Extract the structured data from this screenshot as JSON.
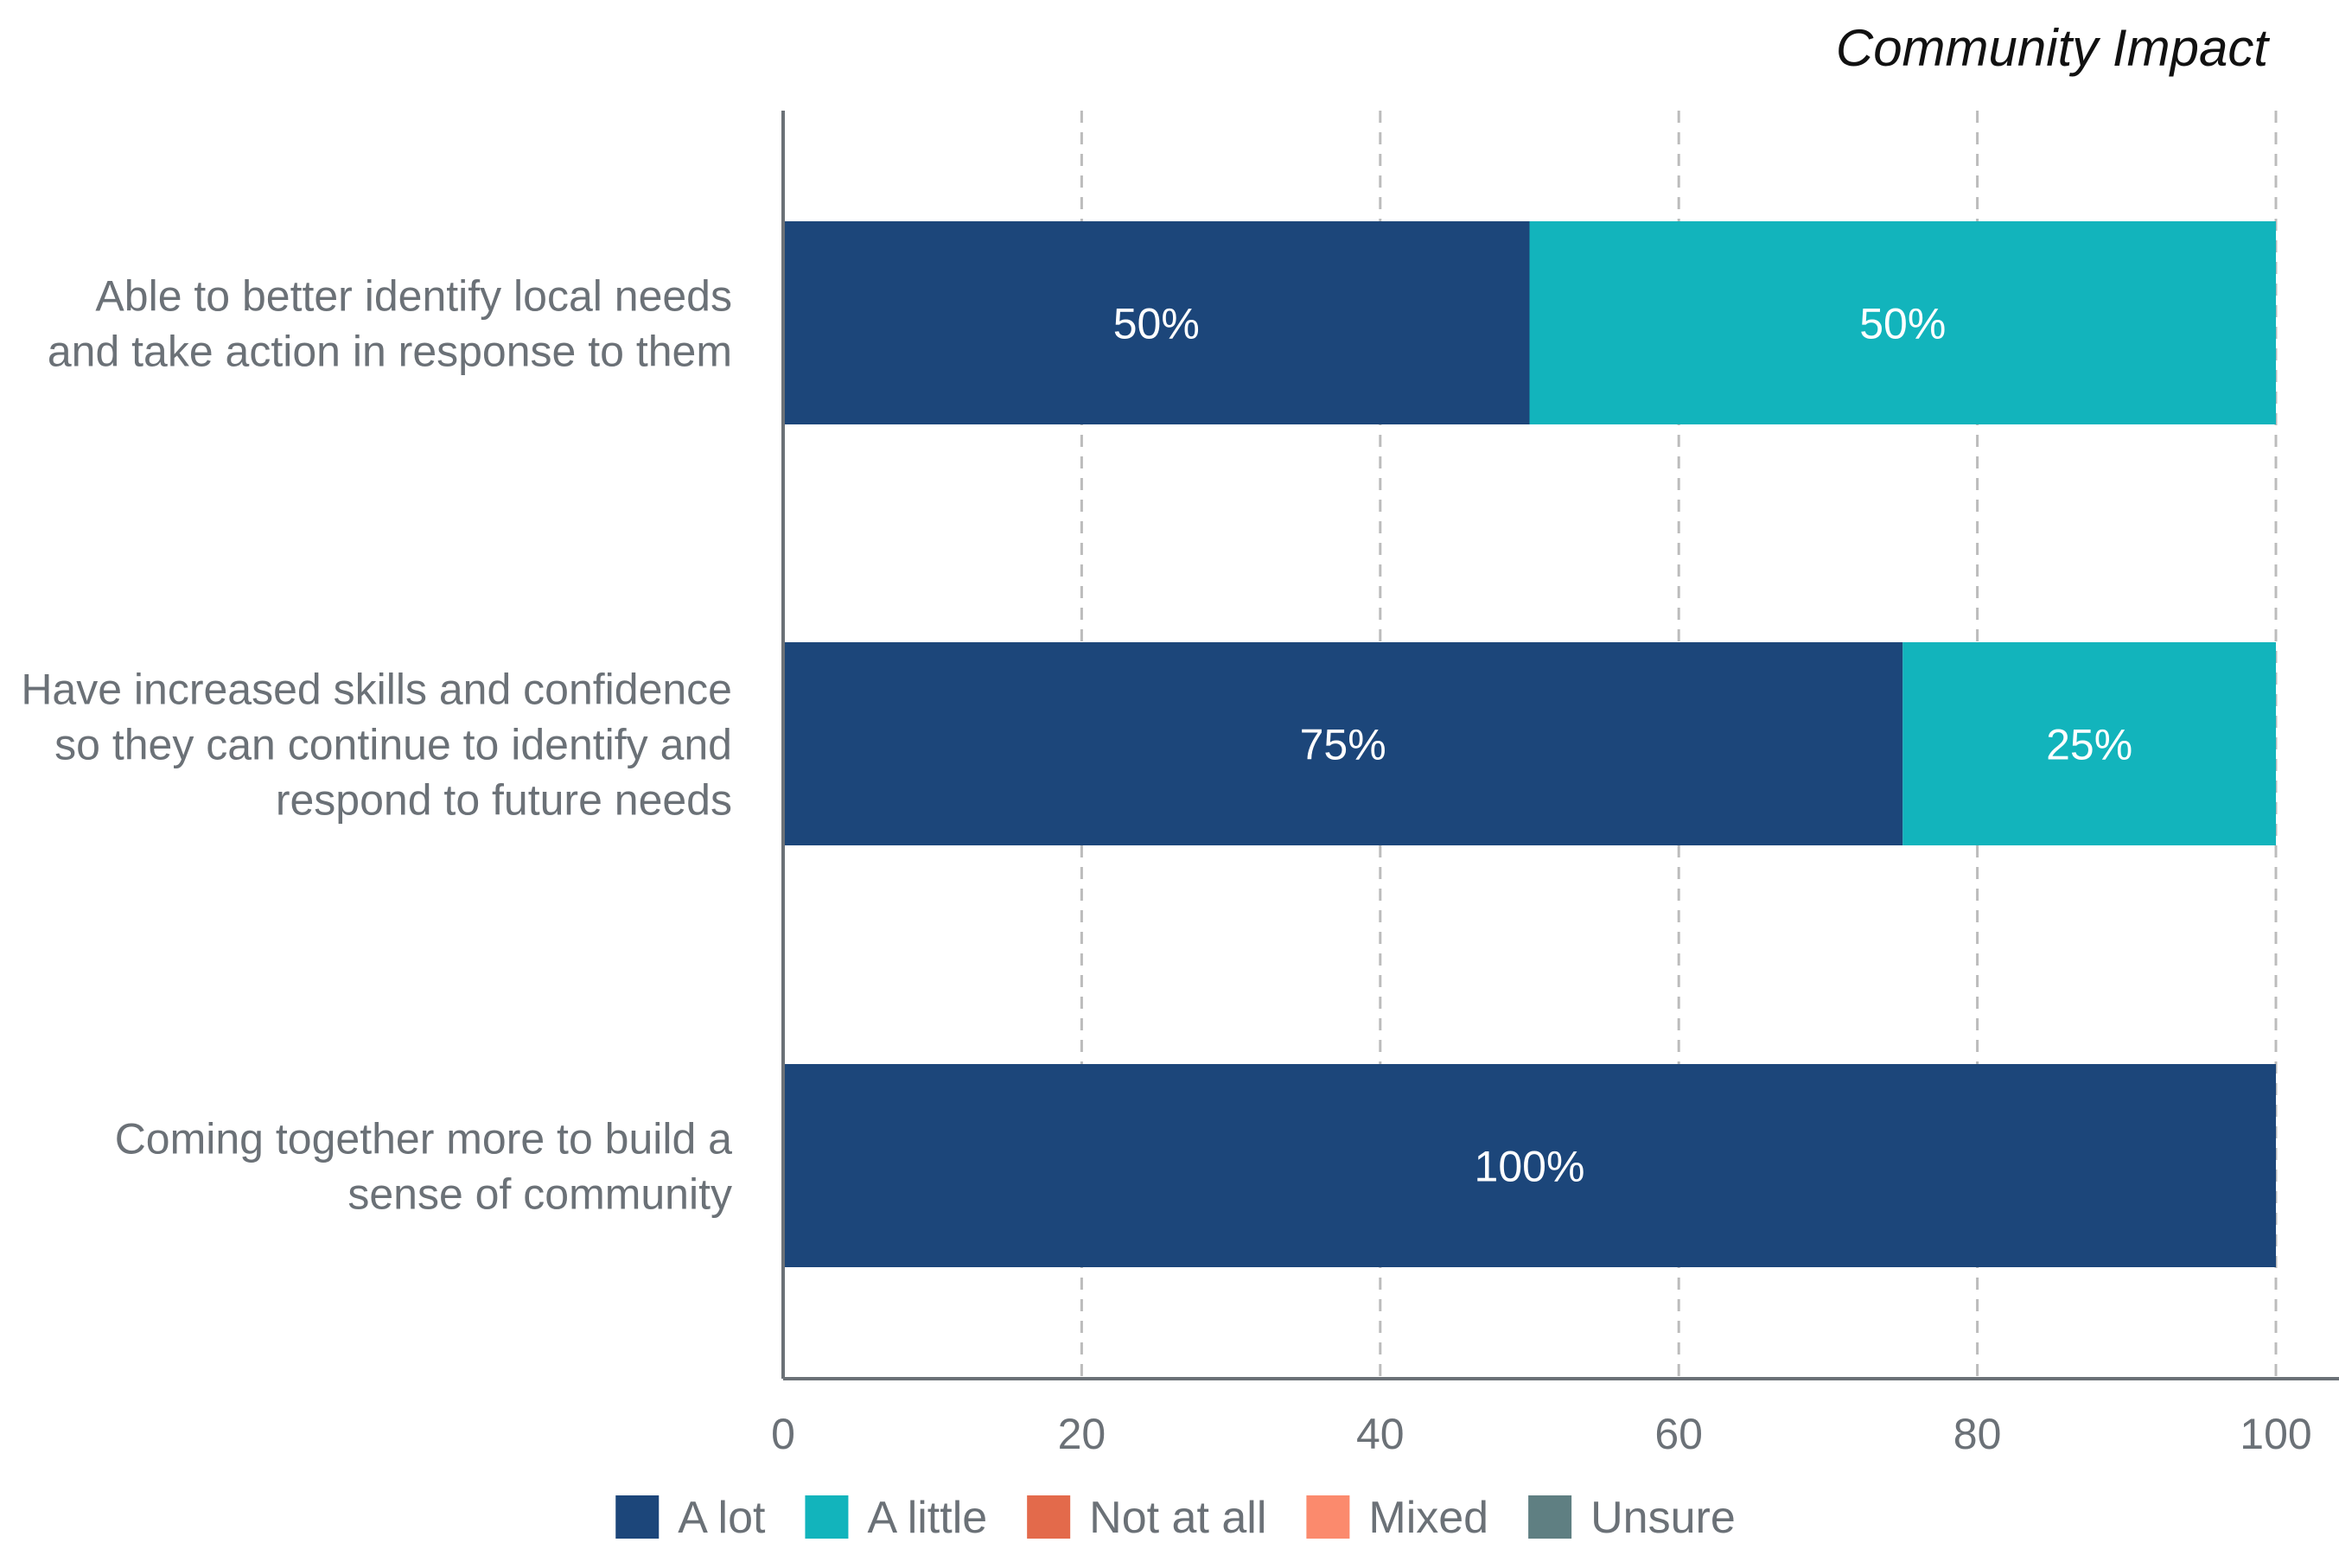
{
  "chart_data": {
    "type": "bar",
    "orientation": "horizontal",
    "stacked": true,
    "title": "Community Impact",
    "categories": [
      [
        "Able to better identify local needs",
        "and take action in response to them"
      ],
      [
        "Have increased skills and confidence",
        "so they can continue to identify and",
        "respond to future needs"
      ],
      [
        "Coming together more to build a",
        "sense of community"
      ]
    ],
    "series": [
      {
        "name": "A lot",
        "color": "#1c467a",
        "values": [
          50,
          75,
          100
        ]
      },
      {
        "name": "A little",
        "color": "#12b4bc",
        "values": [
          50,
          25,
          0
        ]
      },
      {
        "name": "Not at all",
        "color": "#e36a4b",
        "values": [
          0,
          0,
          0
        ]
      },
      {
        "name": "Mixed",
        "color": "#fb8a6d",
        "values": [
          0,
          0,
          0
        ]
      },
      {
        "name": "Unsure",
        "color": "#5f7f82",
        "values": [
          0,
          0,
          0
        ]
      }
    ],
    "data_label_suffix": "%",
    "xlim": [
      0,
      100
    ],
    "xticks": [
      0,
      20,
      40,
      60,
      80,
      100
    ],
    "grid": "vertical-dashed",
    "legend_position": "bottom"
  },
  "colors": {
    "category_text": "#6b7177",
    "tick_text": "#6b7177",
    "title_text": "#111111",
    "grid": "#bcbcbc",
    "axis": "#6b7177",
    "data_label": "#ffffff"
  }
}
